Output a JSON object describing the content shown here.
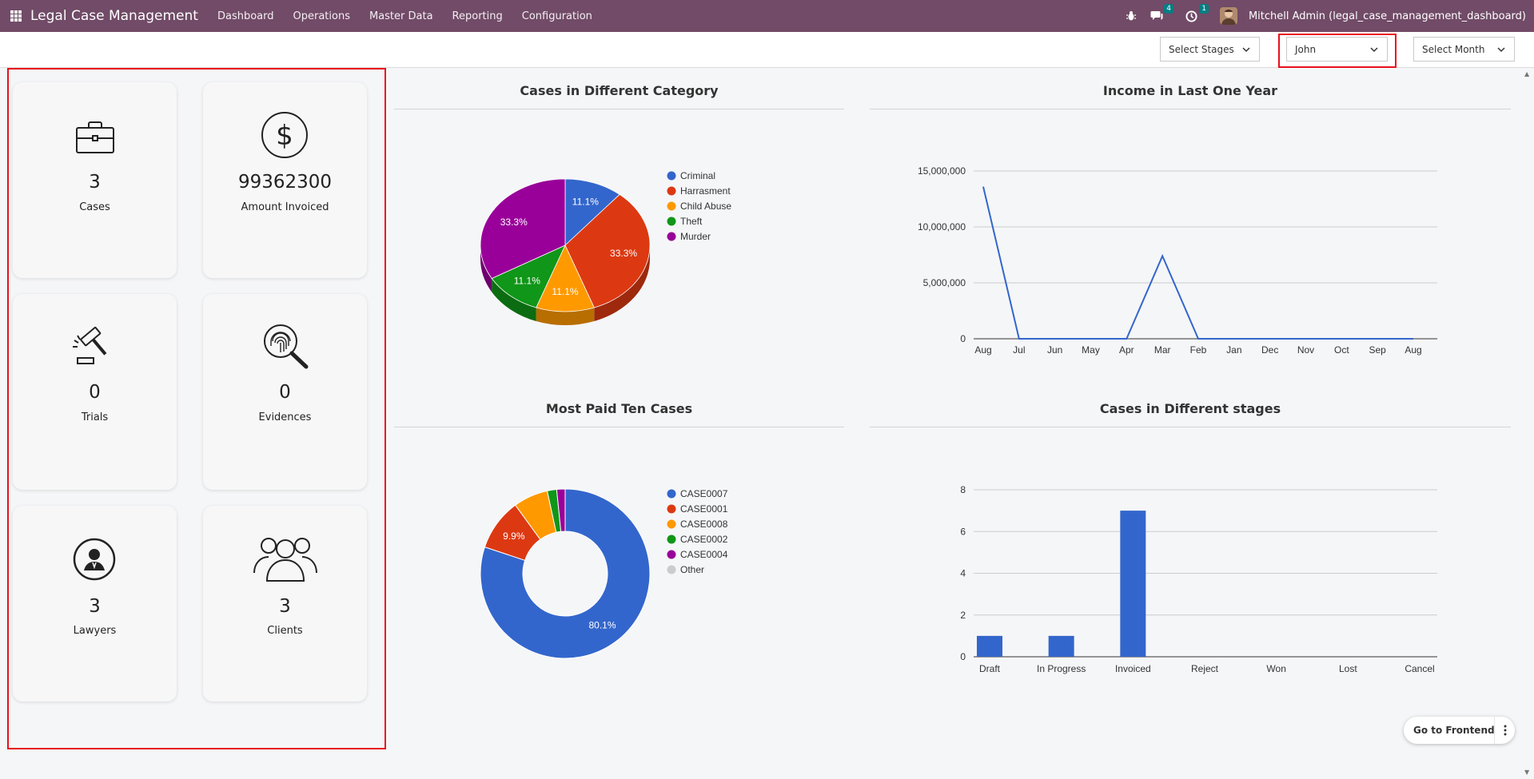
{
  "navbar": {
    "app_title": "Legal Case Management",
    "menu": [
      "Dashboard",
      "Operations",
      "Master Data",
      "Reporting",
      "Configuration"
    ],
    "messages_count": "4",
    "activities_count": "1",
    "user_label": "Mitchell Admin (legal_case_management_dashboard)"
  },
  "filters": {
    "stages": "Select Stages",
    "lawyer": "John",
    "month": "Select Month"
  },
  "kpis": {
    "cases": {
      "value": "3",
      "label": "Cases",
      "icon": "briefcase-icon"
    },
    "amount": {
      "value": "99362300",
      "label": "Amount Invoiced",
      "icon": "dollar-icon"
    },
    "trials": {
      "value": "0",
      "label": "Trials",
      "icon": "gavel-icon"
    },
    "evidences": {
      "value": "0",
      "label": "Evidences",
      "icon": "fingerprint-icon"
    },
    "lawyers": {
      "value": "3",
      "label": "Lawyers",
      "icon": "lawyer-icon"
    },
    "clients": {
      "value": "3",
      "label": "Clients",
      "icon": "clients-icon"
    }
  },
  "chart_titles": {
    "category": "Cases in Different Category",
    "income": "Income in Last One Year",
    "paid": "Most Paid Ten Cases",
    "stages": "Cases in Different stages"
  },
  "frontend_button": "Go to Frontend",
  "chart_data": [
    {
      "type": "pie",
      "title": "Cases in Different Category",
      "categories": [
        "Criminal",
        "Harrasment",
        "Child Abuse",
        "Theft",
        "Murder"
      ],
      "values": [
        11.1,
        33.3,
        11.1,
        11.1,
        33.3
      ],
      "colors": [
        "#3366cc",
        "#dc3912",
        "#ff9900",
        "#109618",
        "#990099"
      ],
      "legend": "right"
    },
    {
      "type": "line",
      "title": "Income in Last One Year",
      "x": [
        "Aug",
        "Jul",
        "Jun",
        "May",
        "Apr",
        "Mar",
        "Feb",
        "Jan",
        "Dec",
        "Nov",
        "Oct",
        "Sep",
        "Aug"
      ],
      "series": [
        {
          "values": [
            13600000,
            0,
            0,
            0,
            0,
            7400000,
            0,
            0,
            0,
            0,
            0,
            0,
            0
          ]
        }
      ],
      "yticks": [
        "0",
        "5,000,000",
        "10,000,000",
        "15,000,000"
      ],
      "ylim": [
        0,
        15000000
      ],
      "grid": true,
      "color": "#3366cc"
    },
    {
      "type": "pie",
      "title": "Most Paid Ten Cases",
      "donut": true,
      "categories": [
        "CASE0007",
        "CASE0001",
        "CASE0008",
        "CASE0002",
        "CASE0004",
        "Other"
      ],
      "values": [
        80.1,
        9.9,
        6.6,
        1.8,
        1.6,
        0.0
      ],
      "colors": [
        "#3366cc",
        "#dc3912",
        "#ff9900",
        "#109618",
        "#990099",
        "#cccccc"
      ],
      "labels_shown": [
        "80.1%",
        "9.9%"
      ],
      "legend": "right"
    },
    {
      "type": "bar",
      "title": "Cases in Different stages",
      "categories": [
        "Draft",
        "In Progress",
        "Invoiced",
        "Reject",
        "Won",
        "Lost",
        "Cancel"
      ],
      "values": [
        1,
        1,
        7,
        0,
        0,
        0,
        0
      ],
      "yticks": [
        "0",
        "2",
        "4",
        "6",
        "8"
      ],
      "ylim": [
        0,
        8
      ],
      "grid": true,
      "color": "#3366cc"
    }
  ]
}
